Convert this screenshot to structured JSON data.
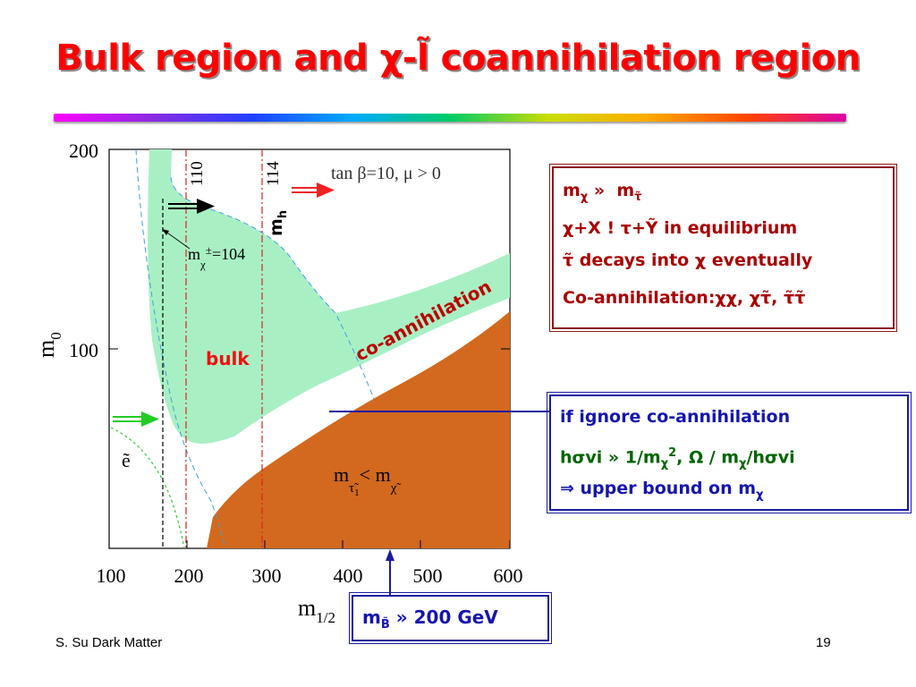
{
  "slide": {
    "title": "Bulk region and χ-l̃ coannihilation region",
    "footer_left": "S. Su Dark Matter",
    "page_number": "19"
  },
  "plot": {
    "x_axis_label": "m",
    "x_axis_label_sub": "1/2",
    "y_axis_label": "m",
    "y_axis_label_sub": "0",
    "x_ticks": [
      "100",
      "200",
      "300",
      "400",
      "500",
      "600"
    ],
    "y_ticks": [
      "100",
      "200"
    ],
    "x_range": [
      100,
      600
    ],
    "y_range": [
      0,
      200
    ],
    "params_label": "tan β=10, μ > 0",
    "vline_110_label": "110",
    "vline_114_label": "114",
    "mh_label": "m",
    "mh_label_sub": "h",
    "chargino_label": "m",
    "chargino_label_sub": "χ",
    "chargino_label_sup": "±",
    "chargino_label_value": "=104",
    "bulk_label": "bulk",
    "coannihilation_label": "co-annihilation",
    "selectron_label": "ẽ",
    "lsp_label_m1": "m",
    "lsp_label_sub1": "τ̃",
    "lsp_label_sub1_index": "1",
    "lsp_label_lt": "< m",
    "lsp_label_sub2": "χ̃",
    "colors": {
      "coannihilation_band": "#a8f0c4",
      "excluded_stau_lsp": "#d2691e",
      "chargino_line": "#000000",
      "higgs_lines": "#dd2222",
      "selectron_curve": "#33cc33",
      "boundary_dashed": "#3aa0e0"
    }
  },
  "physics_box": {
    "line1_m": "m",
    "line1_sub1": "χ",
    "line1_approx": "»",
    "line1_m2": "m",
    "line1_sub2": "τ̃",
    "line2": "χ+X ! τ+Ỹ in equilibrium",
    "line3": "τ̃ decays into χ eventually",
    "line4": "Co-annihilation:χχ, χτ̃, τ̃τ̃"
  },
  "ignore_box": {
    "line1": "if ignore co-annihilation",
    "line2_a": "hσvi » 1/m",
    "line2_sub1": "χ",
    "line2_sup1": "2",
    "line2_b": ", Ω / m",
    "line2_sub2": "χ",
    "line2_c": "/hσvi",
    "line3_a": "⇒ upper bound on m",
    "line3_sub": "χ"
  },
  "mass_box": {
    "m": "m",
    "sub": "B̃",
    "rest": " » 200 GeV"
  }
}
